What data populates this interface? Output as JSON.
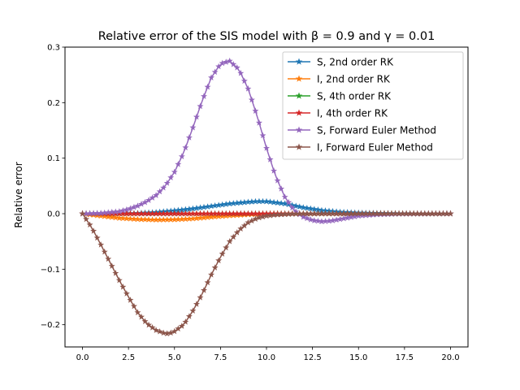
{
  "chart_data": {
    "type": "line",
    "title": "Relative error of the SIS model with β = 0.9 and  γ = 0.01",
    "xlabel": "",
    "ylabel": "Relative error",
    "xlim": [
      -0.95,
      20.95
    ],
    "ylim": [
      -0.24,
      0.3
    ],
    "xticks": [
      0,
      2.5,
      5,
      7.5,
      10,
      12.5,
      15,
      17.5,
      20
    ],
    "xtick_labels": [
      "0.0",
      "2.5",
      "5.0",
      "7.5",
      "10.0",
      "12.5",
      "15.0",
      "17.5",
      "20.0"
    ],
    "yticks": [
      -0.2,
      -0.1,
      0.0,
      0.1,
      0.2,
      0.3
    ],
    "ytick_labels": [
      "−0.2",
      "−0.1",
      "0.0",
      "0.1",
      "0.2",
      "0.3"
    ],
    "grid": false,
    "legend_position": "top-right",
    "marker": "star",
    "x_range": [
      0,
      20
    ],
    "series": [
      {
        "name": "S, 2nd order RK",
        "color": "#1f77b4",
        "x": [
          0,
          1,
          2,
          3,
          4,
          5,
          6,
          7,
          8,
          9,
          9.5,
          10,
          11,
          12,
          13,
          14,
          15,
          16,
          17,
          18,
          20
        ],
        "y": [
          0,
          0,
          0.0002,
          0.0008,
          0.0025,
          0.0055,
          0.009,
          0.0135,
          0.018,
          0.021,
          0.0222,
          0.022,
          0.018,
          0.011,
          0.006,
          0.003,
          0.0015,
          0.0008,
          0.0004,
          0.0002,
          0
        ]
      },
      {
        "name": "I, 2nd order RK",
        "color": "#ff7f0e",
        "x": [
          0,
          1,
          2,
          3,
          4,
          5,
          6,
          7,
          8,
          9,
          10,
          12,
          15,
          20
        ],
        "y": [
          0,
          -0.004,
          -0.008,
          -0.01,
          -0.011,
          -0.0105,
          -0.009,
          -0.006,
          -0.0035,
          -0.0015,
          -0.0005,
          0,
          0,
          0
        ]
      },
      {
        "name": "S, 4th order RK",
        "color": "#2ca02c",
        "x": [
          0,
          20
        ],
        "y": [
          0,
          0
        ]
      },
      {
        "name": "I, 4th order RK",
        "color": "#d62728",
        "x": [
          0,
          20
        ],
        "y": [
          0,
          0
        ]
      },
      {
        "name": "S, Forward Euler Method",
        "color": "#9467bd",
        "x": [
          0,
          1,
          2,
          2.5,
          3,
          3.5,
          4,
          4.5,
          5,
          5.5,
          6,
          6.5,
          7,
          7.5,
          8,
          8.5,
          9,
          9.5,
          10,
          10.5,
          11,
          11.5,
          12,
          12.5,
          13,
          13.5,
          14,
          14.5,
          15,
          16,
          17,
          18,
          19,
          20
        ],
        "y": [
          0,
          0.001,
          0.004,
          0.008,
          0.014,
          0.022,
          0.033,
          0.05,
          0.075,
          0.11,
          0.155,
          0.203,
          0.245,
          0.27,
          0.275,
          0.26,
          0.225,
          0.175,
          0.118,
          0.067,
          0.03,
          0.006,
          -0.006,
          -0.012,
          -0.014,
          -0.013,
          -0.01,
          -0.007,
          -0.004,
          -0.0015,
          -0.0005,
          -0.0002,
          0,
          0
        ]
      },
      {
        "name": "I, Forward Euler Method",
        "color": "#8c564b",
        "x": [
          0,
          0.5,
          1,
          1.5,
          2,
          2.5,
          3,
          3.5,
          4,
          4.5,
          4.7,
          5,
          5.5,
          6,
          6.5,
          7,
          7.5,
          8,
          8.5,
          9,
          9.5,
          10,
          10.5,
          11,
          12,
          13,
          15,
          20
        ],
        "y": [
          0,
          -0.025,
          -0.056,
          -0.088,
          -0.12,
          -0.15,
          -0.178,
          -0.198,
          -0.21,
          -0.216,
          -0.216,
          -0.212,
          -0.2,
          -0.175,
          -0.145,
          -0.11,
          -0.078,
          -0.05,
          -0.03,
          -0.016,
          -0.008,
          -0.004,
          -0.002,
          -0.001,
          0,
          0,
          0,
          0
        ]
      }
    ]
  }
}
